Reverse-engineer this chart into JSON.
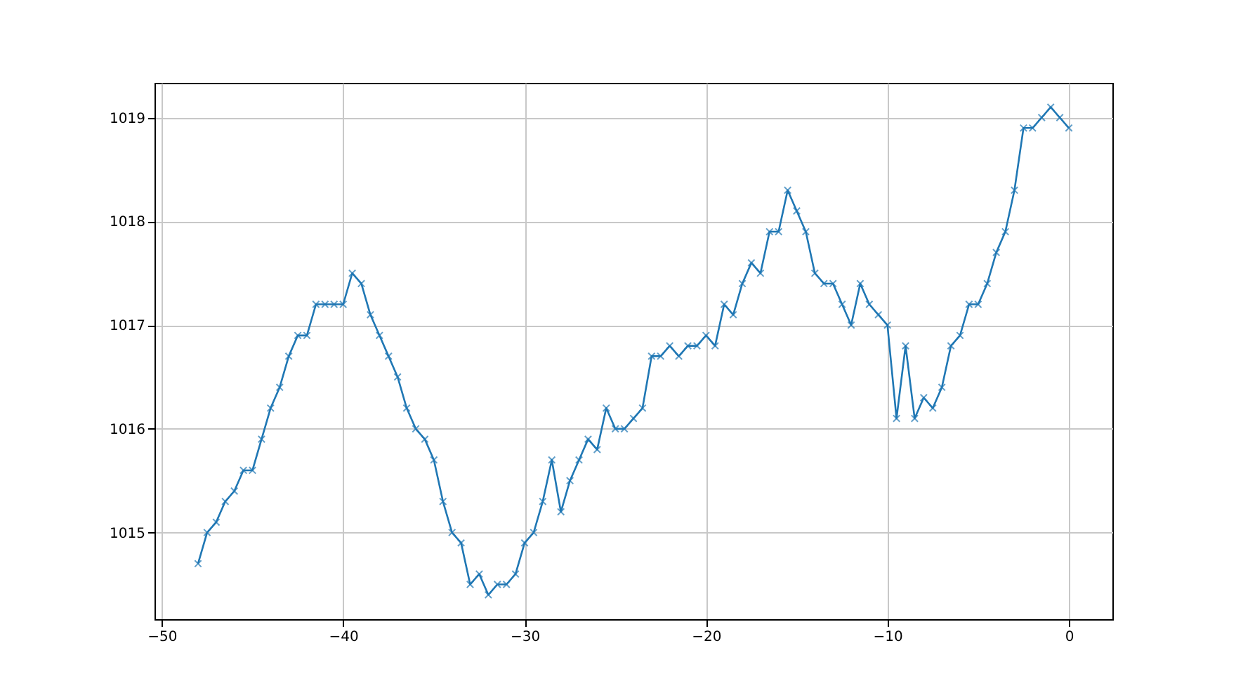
{
  "chart_data": {
    "type": "line",
    "x": [
      -48,
      -47.5,
      -47,
      -46.5,
      -46,
      -45.5,
      -45,
      -44.5,
      -44,
      -43.5,
      -43,
      -42.5,
      -42,
      -41.5,
      -41,
      -40.5,
      -40,
      -39.5,
      -39,
      -38.5,
      -38,
      -37.5,
      -37,
      -36.5,
      -36,
      -35.5,
      -35,
      -34.5,
      -34,
      -33.5,
      -33,
      -32.5,
      -32,
      -31.5,
      -31,
      -30.5,
      -30,
      -29.5,
      -29,
      -28.5,
      -28,
      -27.5,
      -27,
      -26.5,
      -26,
      -25.5,
      -25,
      -24.5,
      -24,
      -23.5,
      -23,
      -22.5,
      -22,
      -21.5,
      -21,
      -20.5,
      -20,
      -19.5,
      -19,
      -18.5,
      -18,
      -17.5,
      -17,
      -16.5,
      -16,
      -15.5,
      -15,
      -14.5,
      -14,
      -13.5,
      -13,
      -12.5,
      -12,
      -11.5,
      -11,
      -10.5,
      -10,
      -9.5,
      -9,
      -8.5,
      -8,
      -7.5,
      -7,
      -6.5,
      -6,
      -5.5,
      -5,
      -4.5,
      -4,
      -3.5,
      -3,
      -2.5,
      -2,
      -1.5,
      -1,
      -0.5,
      0
    ],
    "series": [
      {
        "color": "#1f77b4",
        "values": [
          1014.7,
          1015.0,
          1015.1,
          1015.3,
          1015.4,
          1015.6,
          1015.6,
          1015.9,
          1016.2,
          1016.4,
          1016.7,
          1016.9,
          1016.9,
          1017.2,
          1017.2,
          1017.2,
          1017.2,
          1017.5,
          1017.4,
          1017.1,
          1016.9,
          1016.7,
          1016.5,
          1016.2,
          1016.0,
          1015.9,
          1015.7,
          1015.3,
          1015.0,
          1014.9,
          1014.5,
          1014.6,
          1014.4,
          1014.5,
          1014.5,
          1014.6,
          1014.9,
          1015.0,
          1015.3,
          1015.7,
          1015.2,
          1015.5,
          1015.7,
          1015.9,
          1015.8,
          1016.2,
          1016.0,
          1016.0,
          1016.1,
          1016.2,
          1016.7,
          1016.7,
          1016.8,
          1016.7,
          1016.8,
          1016.8,
          1016.9,
          1016.8,
          1017.2,
          1017.1,
          1017.4,
          1017.6,
          1017.5,
          1017.9,
          1017.9,
          1018.3,
          1018.1,
          1017.9,
          1017.5,
          1017.4,
          1017.4,
          1017.2,
          1017.0,
          1017.4,
          1017.2,
          1017.1,
          1017.0,
          1016.1,
          1016.8,
          1016.1,
          1016.3,
          1016.2,
          1016.4,
          1016.8,
          1016.9,
          1017.2,
          1017.2,
          1017.4,
          1017.7,
          1017.9,
          1018.3,
          1018.9,
          1018.9,
          1019.0,
          1019.1,
          1019.0,
          1018.9
        ]
      }
    ],
    "xlim": [
      -50.4,
      2.4
    ],
    "xticks": [
      -50,
      -40,
      -30,
      -20,
      -10,
      0
    ],
    "ylim": [
      1014.165,
      1019.335
    ],
    "yticks": [
      1015,
      1016,
      1017,
      1018,
      1019
    ],
    "grid": true,
    "marker": "cross",
    "line_style": "solid"
  }
}
